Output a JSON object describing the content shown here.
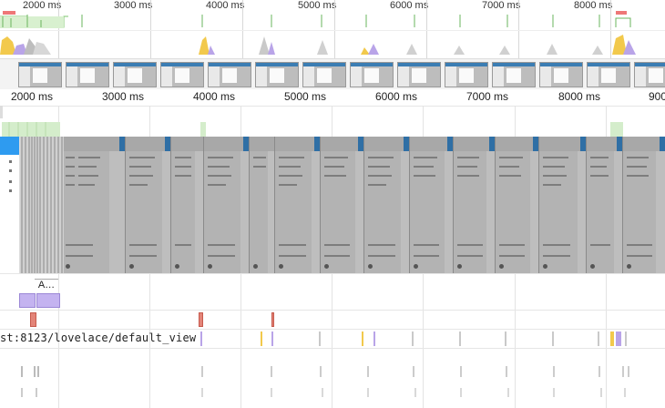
{
  "overview": {
    "time_labels": [
      "2000 ms",
      "3000 ms",
      "4000 ms",
      "5000 ms",
      "6000 ms",
      "7000 ms",
      "8000 ms"
    ]
  },
  "ruler": {
    "time_labels": [
      "2000 ms",
      "3000 ms",
      "4000 ms",
      "5000 ms",
      "6000 ms",
      "7000 ms",
      "8000 ms",
      "900"
    ]
  },
  "main": {
    "task_label": "A…",
    "url_label": "st:8123/lovelace/default_view"
  },
  "colors": {
    "screenshot_grey": "#bebebe",
    "scripting_yellow": "#f2c94c",
    "rendering_purple": "#c4b3f0",
    "network_green": "#bfe3b4",
    "accent_blue": "#2e9bf0",
    "marker_red": "#e38478"
  }
}
